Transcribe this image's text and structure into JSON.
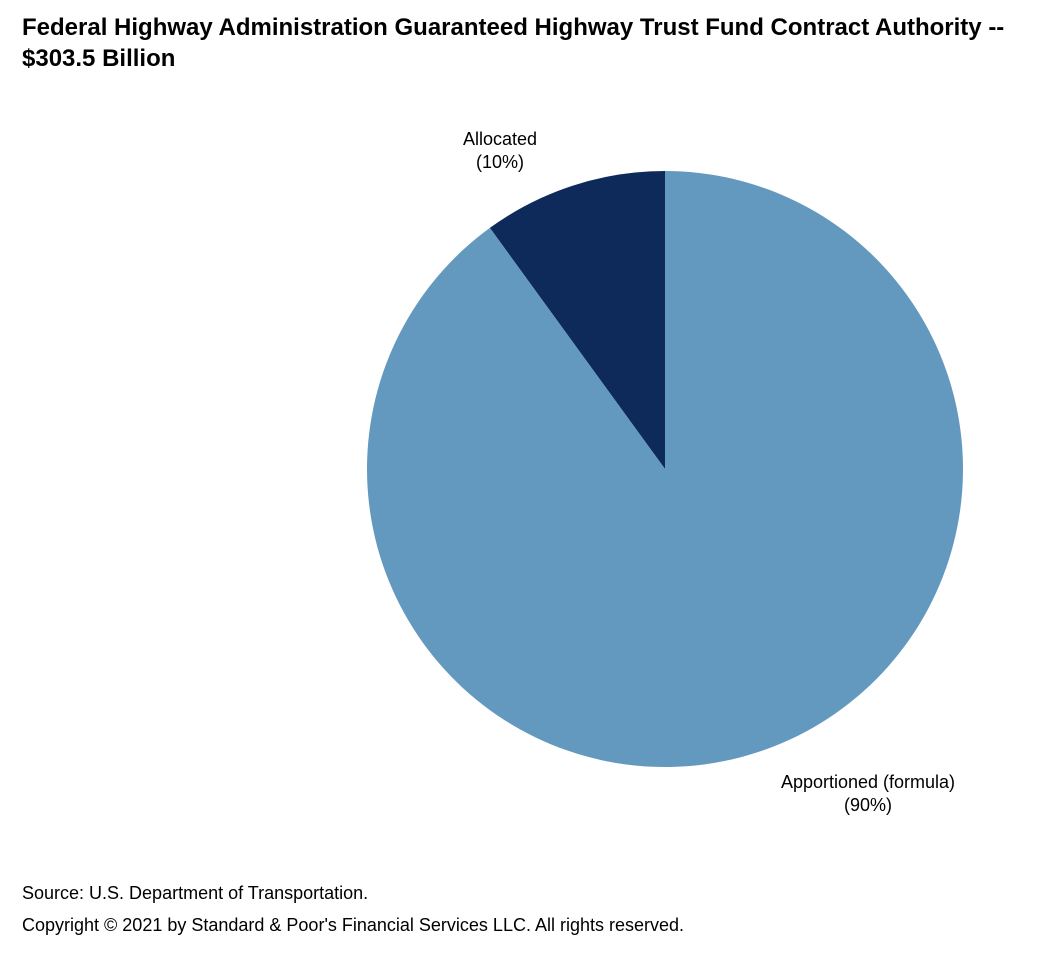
{
  "chart_data": {
    "type": "pie",
    "title": "Federal Highway Administration Guaranteed Highway Trust Fund Contract Authority -- $303.5 Billion",
    "slices": [
      {
        "label": "Allocated",
        "percent_label": "(10%)",
        "value": 10,
        "color": "#0e2a5b"
      },
      {
        "label": "Apportioned (formula)",
        "percent_label": "(90%)",
        "value": 90,
        "color": "#6399bf"
      }
    ]
  },
  "footer": {
    "source": "Source: U.S. Department of Transportation.",
    "copyright": "Copyright © 2021 by Standard & Poor's Financial Services LLC. All rights reserved."
  }
}
